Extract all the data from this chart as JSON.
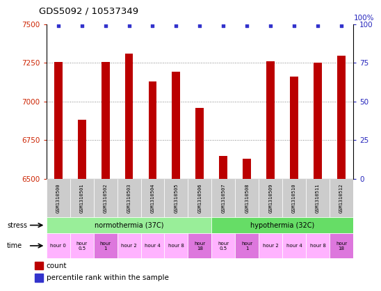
{
  "title": "GDS5092 / 10537349",
  "samples": [
    "GSM1310500",
    "GSM1310501",
    "GSM1310502",
    "GSM1310503",
    "GSM1310504",
    "GSM1310505",
    "GSM1310506",
    "GSM1310507",
    "GSM1310508",
    "GSM1310509",
    "GSM1310510",
    "GSM1310511",
    "GSM1310512"
  ],
  "bar_values": [
    7255,
    6880,
    7255,
    7310,
    7130,
    7190,
    6960,
    6645,
    6630,
    7260,
    7160,
    7250,
    7295
  ],
  "percentile_values": [
    99,
    99,
    99,
    99,
    99,
    99,
    99,
    99,
    99,
    99,
    99,
    99,
    99
  ],
  "bar_color": "#BB0000",
  "percentile_color": "#3333CC",
  "ylim_left": [
    6500,
    7500
  ],
  "ylim_right": [
    0,
    100
  ],
  "yticks_left": [
    6500,
    6750,
    7000,
    7250,
    7500
  ],
  "yticks_right": [
    0,
    25,
    50,
    75,
    100
  ],
  "time_labels": [
    "hour 0",
    "hour\n0.5",
    "hour\n1",
    "hour 2",
    "hour 4",
    "hour 8",
    "hour\n18",
    "hour\n0.5",
    "hour\n1",
    "hour 2",
    "hour 4",
    "hour 8",
    "hour\n18"
  ],
  "time_colors": [
    "#FFB3FF",
    "#FFB3FF",
    "#DD77DD",
    "#FFB3FF",
    "#FFB3FF",
    "#FFB3FF",
    "#DD77DD",
    "#FFB3FF",
    "#DD77DD",
    "#FFB3FF",
    "#FFB3FF",
    "#FFB3FF",
    "#DD77DD"
  ],
  "norm_color": "#99EE99",
  "hypo_color": "#66DD66",
  "sample_bg": "#CCCCCC",
  "bar_width": 0.35,
  "background_color": "#FFFFFF"
}
